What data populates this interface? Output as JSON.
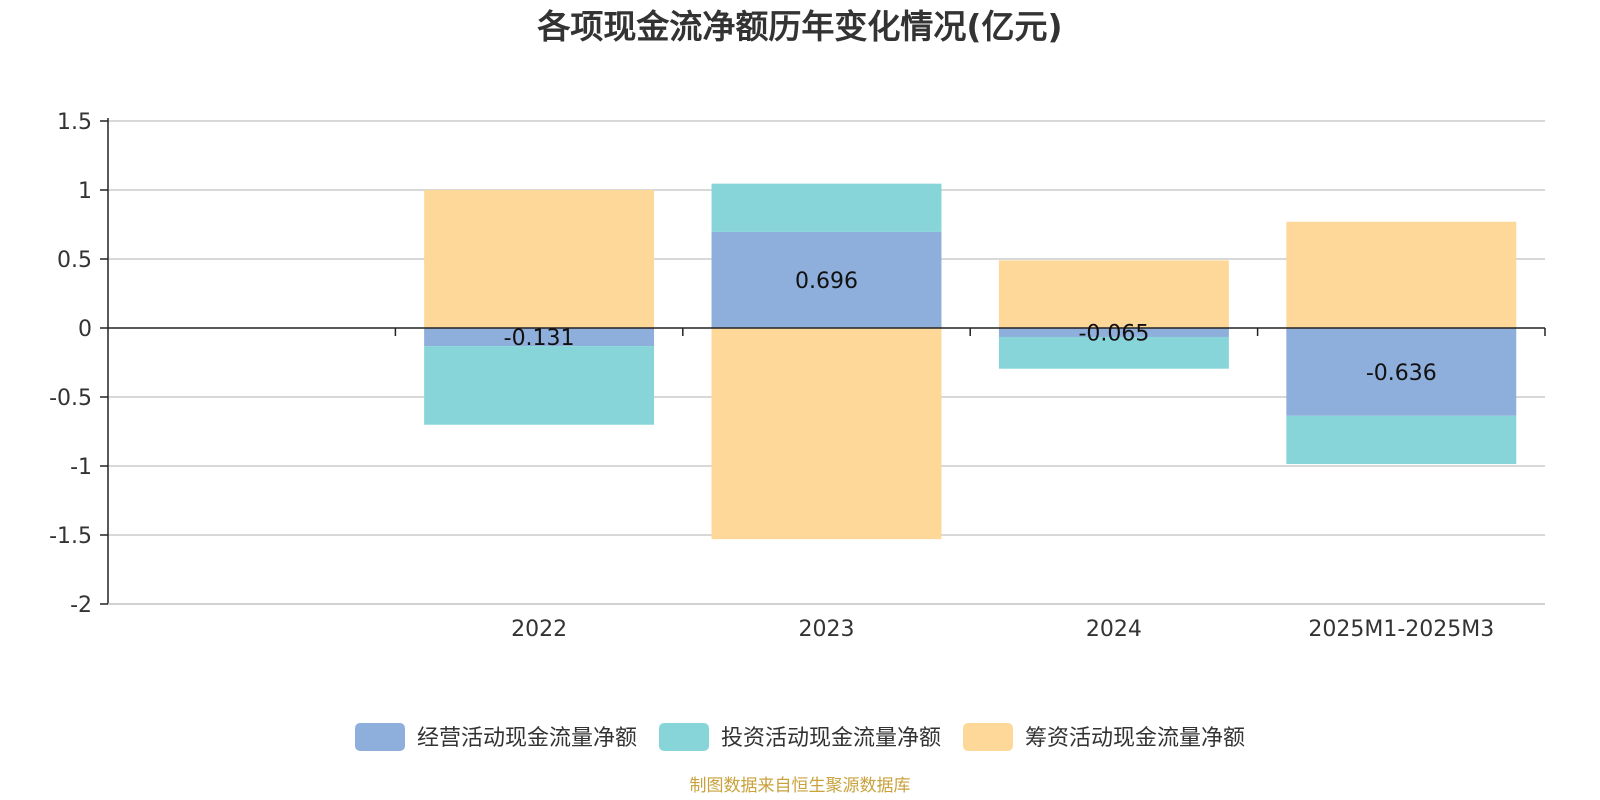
{
  "chart_data": {
    "type": "bar",
    "stacked": true,
    "title": "各项现金流净额历年变化情况(亿元)",
    "categories": [
      "",
      "2022",
      "2023",
      "2024",
      "2025M1-2025M3"
    ],
    "series": [
      {
        "name": "经营活动现金流量净额",
        "color": "#8eaedb",
        "values": [
          null,
          -0.131,
          0.696,
          -0.065,
          -0.636
        ]
      },
      {
        "name": "投资活动现金流量净额",
        "color": "#88d5d9",
        "values": [
          null,
          -0.57,
          0.35,
          -0.23,
          -0.35
        ]
      },
      {
        "name": "筹资活动现金流量净额",
        "color": "#fed898",
        "values": [
          null,
          1.0,
          -1.53,
          0.49,
          0.77
        ]
      }
    ],
    "data_labels": [
      null,
      "-0.131",
      "0.696",
      "-0.065",
      "-0.636"
    ],
    "y_ticks": [
      "1.5",
      "1",
      "0.5",
      "0",
      "-0.5",
      "-1",
      "-1.5",
      "-2"
    ],
    "ylim": [
      -2,
      1.5
    ],
    "grid": true,
    "legend_position": "bottom"
  },
  "footer": {
    "source": "制图数据来自恒生聚源数据库"
  }
}
